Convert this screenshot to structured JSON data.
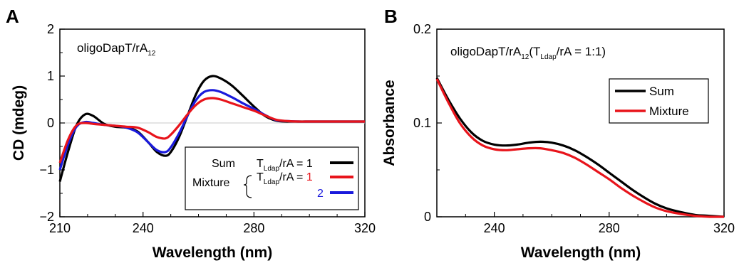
{
  "chart_data": [
    {
      "panel_label": "A",
      "type": "line",
      "annotation": {
        "main": "oligoDapT/rA",
        "sub": "12"
      },
      "xlabel": "Wavelength (nm)",
      "ylabel": "CD (mdeg)",
      "xlim": [
        210,
        320
      ],
      "ylim": [
        -2,
        2
      ],
      "xticks": [
        "210",
        "240",
        "280",
        "320"
      ],
      "yticks": [
        "2",
        "1",
        "0",
        "−1",
        "−2"
      ],
      "zero_line": true,
      "legend": {
        "placement": "bottom-right",
        "rows": [
          {
            "group": "Sum",
            "prefix": "T",
            "sub": "Ldap",
            "suffix": "/rA = ",
            "ratio": "1",
            "color": "#000000"
          },
          {
            "group": "Mixture",
            "prefix": "T",
            "sub": "Ldap",
            "suffix": "/rA = ",
            "ratio": "1",
            "color": "#e8141b"
          },
          {
            "group": "",
            "prefix": "",
            "sub": "",
            "suffix": "",
            "ratio": "2",
            "color": "#1a1adc"
          }
        ]
      },
      "series": [
        {
          "name": "Sum",
          "color": "#000000",
          "x": [
            210,
            213,
            216,
            219,
            222,
            226,
            230,
            234,
            238,
            242,
            245,
            248,
            250,
            253,
            256,
            259,
            262,
            265,
            268,
            272,
            276,
            280,
            284,
            288,
            292,
            296,
            300,
            305,
            310,
            315,
            320
          ],
          "y": [
            -1.25,
            -0.6,
            -0.05,
            0.18,
            0.15,
            -0.02,
            -0.08,
            -0.1,
            -0.18,
            -0.42,
            -0.62,
            -0.7,
            -0.62,
            -0.3,
            0.15,
            0.6,
            0.9,
            1.0,
            0.95,
            0.8,
            0.58,
            0.35,
            0.15,
            0.05,
            0.03,
            0.03,
            0.03,
            0.03,
            0.03,
            0.03,
            0.03
          ]
        },
        {
          "name": "Mixture 1",
          "color": "#e8141b",
          "x": [
            210,
            213,
            216,
            219,
            222,
            226,
            230,
            234,
            238,
            242,
            245,
            248,
            250,
            253,
            256,
            259,
            262,
            265,
            268,
            272,
            276,
            280,
            284,
            288,
            292,
            296,
            300,
            305,
            310,
            315,
            320
          ],
          "y": [
            -0.85,
            -0.35,
            -0.05,
            0.0,
            -0.02,
            -0.04,
            -0.06,
            -0.08,
            -0.1,
            -0.2,
            -0.3,
            -0.33,
            -0.25,
            -0.05,
            0.18,
            0.38,
            0.5,
            0.53,
            0.5,
            0.42,
            0.34,
            0.26,
            0.16,
            0.07,
            0.04,
            0.03,
            0.03,
            0.03,
            0.03,
            0.03,
            0.03
          ]
        },
        {
          "name": "Mixture 2",
          "color": "#1a1adc",
          "x": [
            210,
            213,
            216,
            219,
            222,
            226,
            230,
            234,
            238,
            242,
            245,
            248,
            250,
            253,
            256,
            259,
            262,
            265,
            268,
            272,
            276,
            280,
            284,
            288,
            292,
            296,
            300,
            305,
            310,
            315,
            320
          ],
          "y": [
            -1.0,
            -0.45,
            -0.08,
            0.02,
            0.0,
            -0.04,
            -0.06,
            -0.1,
            -0.2,
            -0.42,
            -0.58,
            -0.62,
            -0.52,
            -0.22,
            0.15,
            0.48,
            0.66,
            0.7,
            0.66,
            0.55,
            0.42,
            0.3,
            0.17,
            0.06,
            0.04,
            0.03,
            0.03,
            0.03,
            0.03,
            0.03,
            0.03
          ]
        }
      ]
    },
    {
      "panel_label": "B",
      "type": "line",
      "annotation": {
        "main": "oligoDapT/rA",
        "sub": "12",
        "paren_open": "(T",
        "paren_sub": "Ldap",
        "paren_rest": "/rA = 1:1)"
      },
      "xlabel": "Wavelength (nm)",
      "ylabel": "Absorbance",
      "xlim": [
        220,
        320
      ],
      "ylim": [
        0,
        0.2
      ],
      "xticks": [
        "240",
        "280",
        "320"
      ],
      "xtick_values": [
        240,
        280,
        320
      ],
      "yticks": [
        "0.2",
        "0.1",
        "0"
      ],
      "legend": {
        "placement": "top-right",
        "rows": [
          {
            "label": "Sum",
            "color": "#000000"
          },
          {
            "label": "Mixture",
            "color": "#e8141b"
          }
        ]
      },
      "series": [
        {
          "name": "Sum",
          "color": "#000000",
          "x": [
            220,
            224,
            228,
            232,
            236,
            240,
            244,
            248,
            252,
            256,
            260,
            264,
            268,
            272,
            276,
            280,
            284,
            288,
            292,
            296,
            300,
            305,
            310,
            315,
            320
          ],
          "y": [
            0.148,
            0.125,
            0.105,
            0.09,
            0.081,
            0.077,
            0.076,
            0.077,
            0.079,
            0.08,
            0.079,
            0.076,
            0.071,
            0.064,
            0.056,
            0.047,
            0.038,
            0.029,
            0.021,
            0.014,
            0.009,
            0.005,
            0.002,
            0.001,
            0.0
          ]
        },
        {
          "name": "Mixture",
          "color": "#e8141b",
          "x": [
            220,
            224,
            228,
            232,
            236,
            240,
            244,
            248,
            252,
            256,
            260,
            264,
            268,
            272,
            276,
            280,
            284,
            288,
            292,
            296,
            300,
            305,
            310,
            315,
            320
          ],
          "y": [
            0.147,
            0.122,
            0.1,
            0.085,
            0.076,
            0.072,
            0.071,
            0.072,
            0.073,
            0.073,
            0.071,
            0.068,
            0.063,
            0.056,
            0.048,
            0.04,
            0.031,
            0.023,
            0.016,
            0.01,
            0.006,
            0.003,
            0.001,
            0.0,
            0.0
          ]
        }
      ]
    }
  ]
}
